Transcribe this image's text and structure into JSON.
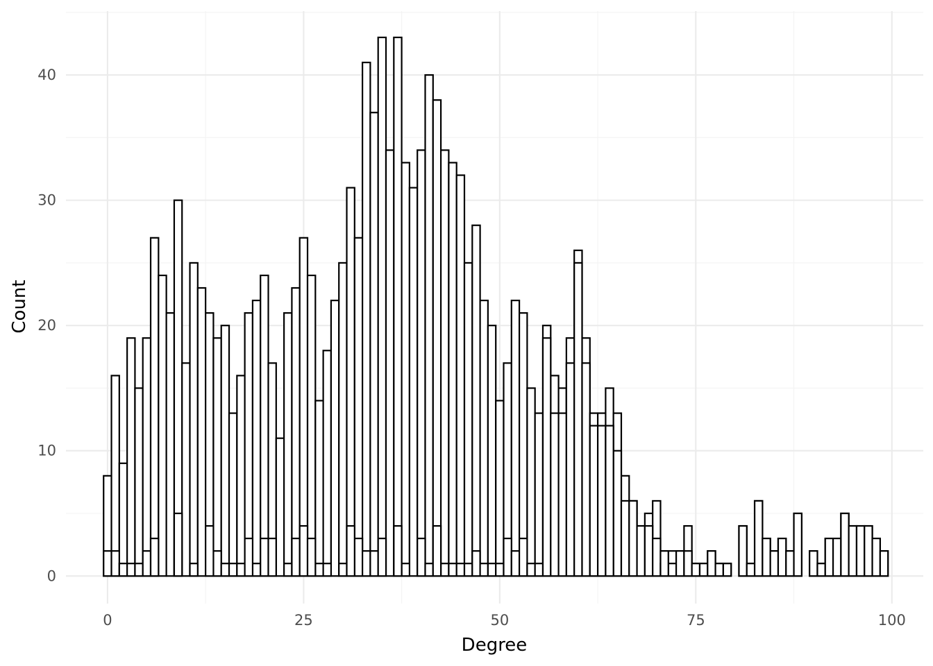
{
  "chart_data": {
    "type": "histogram",
    "xlabel": "Degree",
    "ylabel": "Count",
    "xlim": [
      -5.3,
      104
    ],
    "ylim": [
      -2.2,
      45.1
    ],
    "x_major_ticks": [
      0,
      25,
      50,
      75,
      100
    ],
    "x_minor_ticks": [
      12.5,
      37.5,
      62.5,
      87.5
    ],
    "y_major_ticks": [
      0,
      10,
      20,
      30,
      40
    ],
    "y_minor_ticks": [
      5,
      15,
      25,
      35,
      45
    ],
    "x_tick_labels": [
      "0",
      "25",
      "50",
      "75",
      "100"
    ],
    "y_tick_labels": [
      "0",
      "10",
      "20",
      "30",
      "40"
    ],
    "grid": true,
    "legend": "none",
    "bin_width": 1,
    "series": [
      {
        "bin_centers": [
          0,
          1,
          2,
          3,
          4,
          5,
          6,
          7,
          8,
          9,
          10,
          11,
          12,
          13,
          14,
          15,
          16,
          17,
          18,
          19,
          20,
          21,
          22,
          23,
          24,
          25,
          26,
          27,
          28,
          29,
          30,
          31,
          32,
          33,
          34,
          35,
          36,
          37,
          38,
          39,
          40,
          41,
          42,
          43,
          44,
          45,
          46,
          47,
          48,
          49,
          50,
          51,
          52,
          53,
          54,
          55,
          56,
          57,
          58,
          59,
          60,
          61,
          62,
          63,
          64,
          65,
          66,
          67,
          68,
          69,
          70,
          71,
          72,
          73,
          74,
          75,
          76,
          77,
          78,
          79,
          80,
          81,
          82,
          83,
          84,
          85,
          86,
          87,
          88,
          89,
          90,
          91,
          92,
          93,
          94,
          95,
          96,
          97,
          98,
          99
        ],
        "values": [
          8,
          16,
          9,
          19,
          15,
          19,
          27,
          24,
          21,
          30,
          17,
          25,
          23,
          21,
          19,
          20,
          13,
          16,
          21,
          22,
          24,
          17,
          11,
          21,
          23,
          27,
          24,
          14,
          18,
          22,
          25,
          31,
          27,
          41,
          37,
          43,
          34,
          43,
          33,
          31,
          34,
          40,
          38,
          34,
          33,
          32,
          25,
          28,
          22,
          20,
          14,
          17,
          22,
          21,
          15,
          13,
          20,
          16,
          15,
          19,
          26,
          19,
          13,
          13,
          15,
          13,
          8,
          6,
          4,
          5,
          6,
          2,
          2,
          2,
          4,
          1,
          1,
          2,
          1,
          1,
          0,
          4,
          1,
          6,
          3,
          2,
          3,
          2,
          5,
          0,
          2,
          1,
          3,
          3,
          5,
          4,
          4,
          4,
          3,
          2
        ]
      },
      {
        "bin_centers": [
          0,
          1,
          2,
          3,
          4,
          5,
          6,
          7,
          8,
          9,
          10,
          11,
          12,
          13,
          14,
          15,
          16,
          17,
          18,
          19,
          20,
          21,
          22,
          23,
          24,
          25,
          26,
          27,
          28,
          29,
          30,
          31,
          32,
          33,
          34,
          35,
          36,
          37,
          38,
          39,
          40,
          41,
          42,
          43,
          44,
          45,
          46,
          47,
          48,
          49,
          50,
          51,
          52,
          53,
          54,
          55,
          56,
          57,
          58,
          59,
          60,
          61,
          62,
          63,
          64,
          65,
          66,
          67,
          68,
          69,
          70,
          71,
          72,
          73,
          74,
          75,
          76,
          77,
          78,
          79,
          80,
          81,
          82,
          83,
          84,
          85,
          86,
          87,
          88,
          89,
          90,
          91,
          92,
          93,
          94,
          95,
          96,
          97,
          98,
          99
        ],
        "values": [
          2,
          2,
          1,
          1,
          1,
          2,
          2,
          0,
          0,
          2,
          0,
          1,
          0,
          0,
          2,
          1,
          1,
          1,
          0,
          1,
          0,
          0,
          0,
          1,
          0,
          0,
          0,
          1,
          1,
          0,
          1,
          0,
          3,
          2,
          2,
          3,
          0,
          0,
          1,
          0,
          3,
          1,
          0,
          1,
          1,
          1,
          1,
          2,
          1,
          1,
          1,
          3,
          2,
          3,
          1,
          1,
          19,
          13,
          13,
          17,
          25,
          17,
          13,
          13,
          12,
          10,
          6,
          6,
          4,
          4,
          3,
          1,
          1,
          2,
          2,
          1,
          1,
          2,
          1,
          1,
          0,
          4,
          1,
          6,
          3,
          2,
          3,
          2,
          5,
          0,
          2,
          1,
          3,
          3,
          5,
          4,
          4,
          4,
          3,
          2
        ]
      },
      {
        "bin_centers": [
          0,
          1,
          2,
          3,
          4,
          5,
          6,
          7,
          8,
          9,
          10,
          11,
          12,
          13,
          14,
          15,
          16,
          17,
          18,
          19,
          20,
          21,
          22,
          23,
          24,
          25,
          26,
          27,
          28,
          29,
          30,
          31,
          32,
          33,
          34,
          35,
          36,
          37,
          38,
          39,
          40,
          41,
          42,
          43,
          44,
          45,
          46,
          47,
          48,
          49,
          50,
          51,
          52,
          53,
          54,
          55,
          56,
          57,
          58,
          59,
          60,
          61,
          62,
          63,
          64,
          65,
          66,
          67,
          68,
          69,
          70,
          71,
          72,
          73,
          74,
          75,
          76,
          77,
          78,
          79,
          80,
          81,
          82,
          83,
          84,
          85,
          86,
          87,
          88,
          89,
          90,
          91,
          92,
          93,
          94,
          95,
          96,
          97,
          98,
          99
        ],
        "values": [
          0,
          0,
          0,
          0,
          0,
          0,
          3,
          0,
          0,
          5,
          0,
          0,
          0,
          4,
          0,
          0,
          0,
          0,
          3,
          0,
          3,
          3,
          0,
          0,
          3,
          4,
          3,
          0,
          0,
          0,
          0,
          4,
          0,
          0,
          0,
          0,
          0,
          4,
          0,
          0,
          0,
          0,
          4,
          0,
          0,
          0,
          0,
          0,
          0,
          0,
          0,
          0,
          0,
          0,
          0,
          0,
          0,
          0,
          0,
          0,
          0,
          0,
          12,
          12,
          12,
          0,
          0,
          0,
          0,
          0,
          0,
          2,
          0,
          0,
          0,
          0,
          0,
          0,
          0,
          0,
          0,
          0,
          0,
          0,
          0,
          0,
          0,
          0,
          0,
          0,
          0,
          0,
          0,
          0,
          0,
          0,
          0,
          0,
          0,
          0
        ]
      }
    ]
  }
}
